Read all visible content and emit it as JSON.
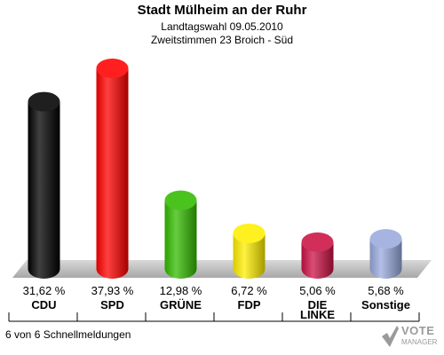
{
  "header": {
    "title": "Stadt Mülheim an der Ruhr",
    "subtitle1": "Landtagswahl 09.05.2010",
    "subtitle2": "Zweitstimmen 23 Broich - Süd"
  },
  "footer": {
    "text": "6 von 6 Schnellmeldungen"
  },
  "logo": {
    "line1": "VOTE",
    "line2": "MANAGER"
  },
  "chart_data": {
    "type": "bar",
    "title": "Stadt Mülheim an der Ruhr",
    "categories": [
      "CDU",
      "SPD",
      "GRÜNE",
      "FDP",
      "DIE LINKE",
      "Sonstige"
    ],
    "category_lines": [
      [
        "CDU"
      ],
      [
        "SPD"
      ],
      [
        "GRÜNE"
      ],
      [
        "FDP"
      ],
      [
        "DIE",
        "LINKE"
      ],
      [
        "Sonstige"
      ]
    ],
    "values": [
      31.62,
      37.93,
      12.98,
      6.72,
      5.06,
      5.68
    ],
    "value_labels": [
      "31,62 %",
      "37,93 %",
      "12,98 %",
      "6,72 %",
      "5,06 %",
      "5,68 %"
    ],
    "colors": [
      "#000000",
      "#ff0000",
      "#33bb00",
      "#ffee00",
      "#cc1144",
      "#99aadd"
    ],
    "ylim": [
      0,
      40
    ],
    "grid": false,
    "legend": "none"
  }
}
